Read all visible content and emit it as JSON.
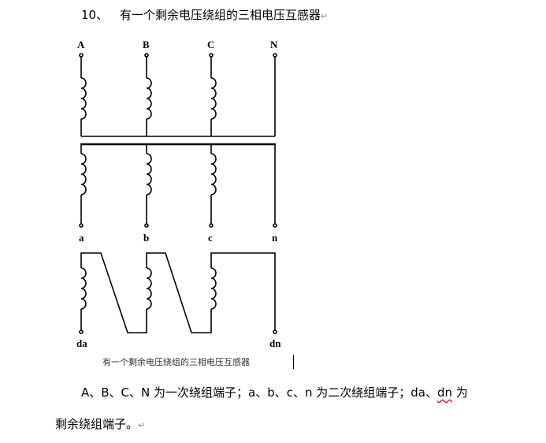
{
  "heading": {
    "number": "10、",
    "text": "有一个剩余电压绕组的三相电压互感器",
    "mark": "↵"
  },
  "diagram": {
    "primary_terminals": [
      "A",
      "B",
      "C",
      "N"
    ],
    "secondary_terminals": [
      "a",
      "b",
      "c",
      "n"
    ],
    "residual_terminals": [
      "da",
      "dn"
    ],
    "caption": "有一个剩余电压绕组的三相电压互感器"
  },
  "paragraph": {
    "line1_a": "A、B、C、N 为一次绕组端子；a、b、c、n 为二次绕组端子；da、",
    "line1_b": "dn",
    "line1_c": " 为",
    "line2": "剩余绕组端子。",
    "mark": "↵"
  }
}
